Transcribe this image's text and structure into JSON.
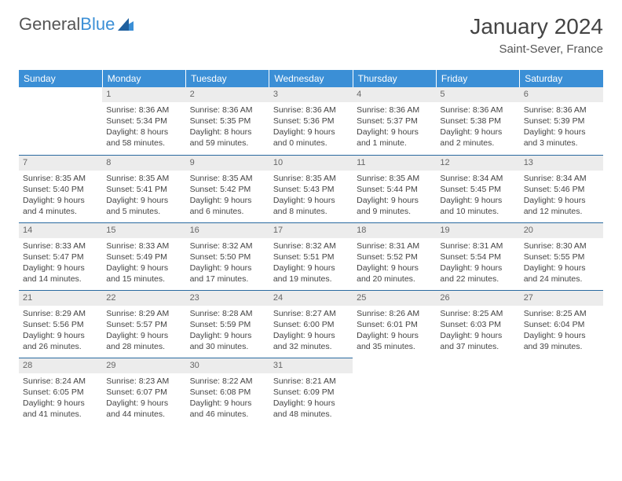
{
  "logo": {
    "text_a": "General",
    "text_b": "Blue"
  },
  "title": {
    "month": "January 2024",
    "location": "Saint-Sever, France"
  },
  "colors": {
    "header_bg": "#3b8fd6",
    "header_text": "#ffffff",
    "daynum_bg": "#ececec",
    "daynum_text": "#666666",
    "rule": "#2a6aa0",
    "body_text": "#444444"
  },
  "weekdays": [
    "Sunday",
    "Monday",
    "Tuesday",
    "Wednesday",
    "Thursday",
    "Friday",
    "Saturday"
  ],
  "weeks": [
    [
      null,
      {
        "n": "1",
        "sr": "8:36 AM",
        "ss": "5:34 PM",
        "dl": "8 hours and 58 minutes."
      },
      {
        "n": "2",
        "sr": "8:36 AM",
        "ss": "5:35 PM",
        "dl": "8 hours and 59 minutes."
      },
      {
        "n": "3",
        "sr": "8:36 AM",
        "ss": "5:36 PM",
        "dl": "9 hours and 0 minutes."
      },
      {
        "n": "4",
        "sr": "8:36 AM",
        "ss": "5:37 PM",
        "dl": "9 hours and 1 minute."
      },
      {
        "n": "5",
        "sr": "8:36 AM",
        "ss": "5:38 PM",
        "dl": "9 hours and 2 minutes."
      },
      {
        "n": "6",
        "sr": "8:36 AM",
        "ss": "5:39 PM",
        "dl": "9 hours and 3 minutes."
      }
    ],
    [
      {
        "n": "7",
        "sr": "8:35 AM",
        "ss": "5:40 PM",
        "dl": "9 hours and 4 minutes."
      },
      {
        "n": "8",
        "sr": "8:35 AM",
        "ss": "5:41 PM",
        "dl": "9 hours and 5 minutes."
      },
      {
        "n": "9",
        "sr": "8:35 AM",
        "ss": "5:42 PM",
        "dl": "9 hours and 6 minutes."
      },
      {
        "n": "10",
        "sr": "8:35 AM",
        "ss": "5:43 PM",
        "dl": "9 hours and 8 minutes."
      },
      {
        "n": "11",
        "sr": "8:35 AM",
        "ss": "5:44 PM",
        "dl": "9 hours and 9 minutes."
      },
      {
        "n": "12",
        "sr": "8:34 AM",
        "ss": "5:45 PM",
        "dl": "9 hours and 10 minutes."
      },
      {
        "n": "13",
        "sr": "8:34 AM",
        "ss": "5:46 PM",
        "dl": "9 hours and 12 minutes."
      }
    ],
    [
      {
        "n": "14",
        "sr": "8:33 AM",
        "ss": "5:47 PM",
        "dl": "9 hours and 14 minutes."
      },
      {
        "n": "15",
        "sr": "8:33 AM",
        "ss": "5:49 PM",
        "dl": "9 hours and 15 minutes."
      },
      {
        "n": "16",
        "sr": "8:32 AM",
        "ss": "5:50 PM",
        "dl": "9 hours and 17 minutes."
      },
      {
        "n": "17",
        "sr": "8:32 AM",
        "ss": "5:51 PM",
        "dl": "9 hours and 19 minutes."
      },
      {
        "n": "18",
        "sr": "8:31 AM",
        "ss": "5:52 PM",
        "dl": "9 hours and 20 minutes."
      },
      {
        "n": "19",
        "sr": "8:31 AM",
        "ss": "5:54 PM",
        "dl": "9 hours and 22 minutes."
      },
      {
        "n": "20",
        "sr": "8:30 AM",
        "ss": "5:55 PM",
        "dl": "9 hours and 24 minutes."
      }
    ],
    [
      {
        "n": "21",
        "sr": "8:29 AM",
        "ss": "5:56 PM",
        "dl": "9 hours and 26 minutes."
      },
      {
        "n": "22",
        "sr": "8:29 AM",
        "ss": "5:57 PM",
        "dl": "9 hours and 28 minutes."
      },
      {
        "n": "23",
        "sr": "8:28 AM",
        "ss": "5:59 PM",
        "dl": "9 hours and 30 minutes."
      },
      {
        "n": "24",
        "sr": "8:27 AM",
        "ss": "6:00 PM",
        "dl": "9 hours and 32 minutes."
      },
      {
        "n": "25",
        "sr": "8:26 AM",
        "ss": "6:01 PM",
        "dl": "9 hours and 35 minutes."
      },
      {
        "n": "26",
        "sr": "8:25 AM",
        "ss": "6:03 PM",
        "dl": "9 hours and 37 minutes."
      },
      {
        "n": "27",
        "sr": "8:25 AM",
        "ss": "6:04 PM",
        "dl": "9 hours and 39 minutes."
      }
    ],
    [
      {
        "n": "28",
        "sr": "8:24 AM",
        "ss": "6:05 PM",
        "dl": "9 hours and 41 minutes."
      },
      {
        "n": "29",
        "sr": "8:23 AM",
        "ss": "6:07 PM",
        "dl": "9 hours and 44 minutes."
      },
      {
        "n": "30",
        "sr": "8:22 AM",
        "ss": "6:08 PM",
        "dl": "9 hours and 46 minutes."
      },
      {
        "n": "31",
        "sr": "8:21 AM",
        "ss": "6:09 PM",
        "dl": "9 hours and 48 minutes."
      },
      null,
      null,
      null
    ]
  ],
  "labels": {
    "sunrise": "Sunrise: ",
    "sunset": "Sunset: ",
    "daylight": "Daylight: "
  }
}
